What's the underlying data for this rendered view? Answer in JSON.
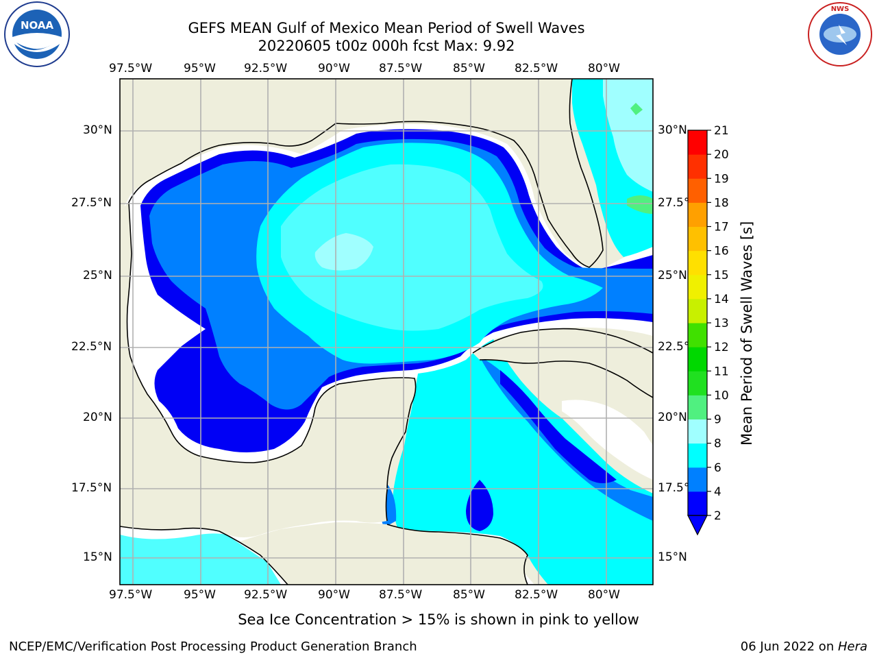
{
  "header": {
    "title_line1": "GEFS MEAN Gulf of Mexico Mean Period of Swell Waves",
    "title_line2": "20220605 t00z 000h fcst   Max: 9.92"
  },
  "logos": {
    "left": {
      "name": "noaa-logo",
      "text": "NOAA"
    },
    "right": {
      "name": "national-weather-service-logo",
      "text": "NATIONAL WEATHER SERVICE"
    }
  },
  "map": {
    "lon_labels": [
      "97.5°W",
      "95°W",
      "92.5°W",
      "90°W",
      "87.5°W",
      "85°W",
      "82.5°W",
      "80°W"
    ],
    "lat_labels_left": [
      "30°N",
      "27.5°N",
      "25°N",
      "22.5°N",
      "20°N",
      "17.5°N",
      "15°N"
    ],
    "lat_labels_right": [
      "30°N",
      "27.5°",
      "25°N",
      "22.5°",
      "20°N",
      "17.5°",
      "15°N"
    ],
    "colors": {
      "land": "#eeeedc",
      "ocean_blank": "#ffffff",
      "grid": "#b0b0b0",
      "coast": "#000000"
    }
  },
  "colorbar": {
    "label": "Mean Period of Swell Waves [s]",
    "ticks": [
      "2",
      "4",
      "6",
      "8",
      "9",
      "10",
      "11",
      "12",
      "13",
      "14",
      "15",
      "16",
      "17",
      "18",
      "19",
      "20",
      "21"
    ],
    "colors": [
      "#0000ff",
      "#0080ff",
      "#00ffff",
      "#50ffff",
      "#a0ffff",
      "#50f080",
      "#20e020",
      "#00d800",
      "#40e000",
      "#90e800",
      "#c8f000",
      "#f0f000",
      "#ffe000",
      "#ffc000",
      "#ffa000",
      "#ff8000",
      "#ff6000",
      "#ff3000",
      "#ff0000"
    ]
  },
  "note": "Sea Ice Concentration > 15% is shown in pink to yellow",
  "footer": {
    "left": "NCEP/EMC/Verification Post Processing Product Generation Branch",
    "date": "06 Jun 2022 on ",
    "machine": "Hera"
  }
}
